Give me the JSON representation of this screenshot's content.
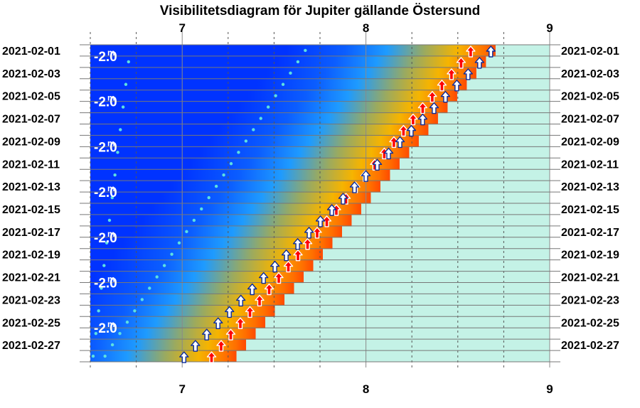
{
  "chart_data": {
    "type": "visibility-diagram",
    "title": "Visibilitetsdiagram för Jupiter gällande Östersund",
    "x_ticks": [
      "7",
      "8",
      "9"
    ],
    "xlim": [
      6.5,
      9.0
    ],
    "date_labels": [
      "2021-02-01",
      "2021-02-03",
      "2021-02-05",
      "2021-02-07",
      "2021-02-09",
      "2021-02-11",
      "2021-02-13",
      "2021-02-15",
      "2021-02-17",
      "2021-02-19",
      "2021-02-21",
      "2021-02-23",
      "2021-02-25",
      "2021-02-27"
    ],
    "magnitude_labels": [
      {
        "value": "-2.0",
        "unit": "m"
      },
      {
        "value": "-2.0",
        "unit": "m"
      },
      {
        "value": "-2.0",
        "unit": "m"
      },
      {
        "value": "-2.0",
        "unit": "m"
      },
      {
        "value": "-2.0",
        "unit": "m"
      },
      {
        "value": "-2.0",
        "unit": "m"
      },
      {
        "value": "-2.0",
        "unit": "m"
      }
    ],
    "jupiter_rise_hour": {
      "first": 8.68,
      "last": 7.01
    },
    "sun_rise_hour": {
      "first": 8.57,
      "last": 7.16
    },
    "dawn_dot_hour": {
      "first": 7.67,
      "last": 6.58
    },
    "magnitude_dot_hour": {
      "first": 6.7,
      "last": 6.5
    },
    "grid": true
  },
  "colors": {
    "night": "#0033ff",
    "twilight": "#1e9bff",
    "dawn": "#f6b400",
    "sunrise": "#ff4a00",
    "day": "#c4f2e6",
    "jupiter_arrow": "#0a2a9a",
    "sun_arrow": "#ff0000",
    "dot": "#5de0e0"
  }
}
